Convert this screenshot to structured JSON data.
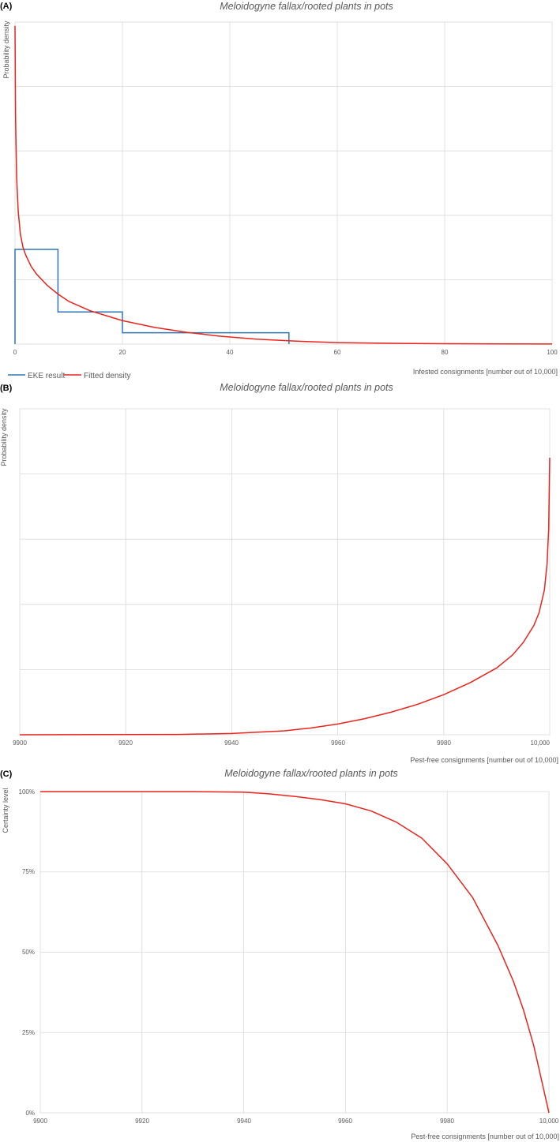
{
  "chart_data": [
    {
      "panel": "(A)",
      "type": "line",
      "title": "Meloidogyne fallax/rooted plants in pots",
      "xlabel": "Infested consignments [number out of 10,000]",
      "ylabel": "Probability density",
      "xlim": [
        0,
        100
      ],
      "xticks": [
        "0",
        "20",
        "40",
        "60",
        "80",
        "100"
      ],
      "ylim": [
        0,
        0.085
      ],
      "grid": true,
      "legend_position": "bottom-left",
      "series": [
        {
          "name": "EKE result",
          "color": "#2e75b6",
          "kind": "step",
          "bins": [
            {
              "from": 0,
              "to": 8,
              "density": 0.025
            },
            {
              "from": 8,
              "to": 20,
              "density": 0.0085
            },
            {
              "from": 20,
              "to": 51,
              "density": 0.003
            }
          ]
        },
        {
          "name": "Fitted density",
          "color": "#e8241c",
          "kind": "curve",
          "x": [
            0,
            0.1,
            0.3,
            0.6,
            1,
            1.5,
            2,
            3,
            4,
            6,
            8,
            10,
            14,
            20,
            26,
            32,
            38,
            45,
            52,
            60,
            70,
            80,
            90,
            100
          ],
          "y": [
            0.084,
            0.06,
            0.044,
            0.035,
            0.029,
            0.0255,
            0.0235,
            0.0205,
            0.0185,
            0.0155,
            0.0132,
            0.0113,
            0.0088,
            0.0062,
            0.0044,
            0.0031,
            0.0021,
            0.0013,
            0.0008,
            0.0004,
            0.0002,
            0.0001,
            5e-05,
            2e-05
          ]
        }
      ]
    },
    {
      "panel": "(B)",
      "type": "line",
      "title": "Meloidogyne fallax/rooted plants in pots",
      "xlabel": "Pest-free consignments [number out of 10,000]",
      "ylabel": "Probability density",
      "xlim": [
        9900,
        10000
      ],
      "xticks": [
        "9900",
        "9920",
        "9940",
        "9960",
        "9980",
        "10,000"
      ],
      "ylim": [
        0,
        0.1
      ],
      "grid": true,
      "series": [
        {
          "name": "Fitted density",
          "color": "#e8241c",
          "kind": "curve",
          "x": [
            9900,
            9930,
            9940,
            9950,
            9955,
            9960,
            9965,
            9970,
            9975,
            9980,
            9985,
            9990,
            9993,
            9995,
            9997,
            9998,
            9999,
            9999.5,
            9999.8,
            9999.9,
            10000
          ],
          "y": [
            0,
            0.0001,
            0.0004,
            0.0012,
            0.0021,
            0.0033,
            0.0049,
            0.0069,
            0.0093,
            0.0123,
            0.016,
            0.0205,
            0.0245,
            0.0283,
            0.0335,
            0.0375,
            0.0445,
            0.0525,
            0.063,
            0.074,
            0.085
          ]
        }
      ]
    },
    {
      "panel": "(C)",
      "type": "line",
      "title": "Meloidogyne fallax/rooted plants in pots",
      "xlabel": "Pest-free consignments [number out of 10,000]",
      "ylabel": "Certainty level",
      "xlim": [
        9900,
        10000
      ],
      "xticks": [
        "9900",
        "9920",
        "9940",
        "9960",
        "9980",
        "10,000"
      ],
      "ylim": [
        0,
        1
      ],
      "yticks": [
        "0%",
        "25%",
        "50%",
        "75%",
        "100%"
      ],
      "grid": true,
      "series": [
        {
          "name": "Certainty",
          "color": "#e8241c",
          "kind": "curve",
          "x": [
            9900,
            9930,
            9940,
            9945,
            9950,
            9955,
            9960,
            9965,
            9970,
            9975,
            9980,
            9985,
            9990,
            9993,
            9995,
            9997,
            9998,
            9999,
            10000
          ],
          "y": [
            1,
            1,
            0.998,
            0.993,
            0.985,
            0.975,
            0.962,
            0.94,
            0.905,
            0.855,
            0.775,
            0.67,
            0.52,
            0.41,
            0.32,
            0.21,
            0.14,
            0.07,
            0
          ]
        }
      ]
    }
  ]
}
